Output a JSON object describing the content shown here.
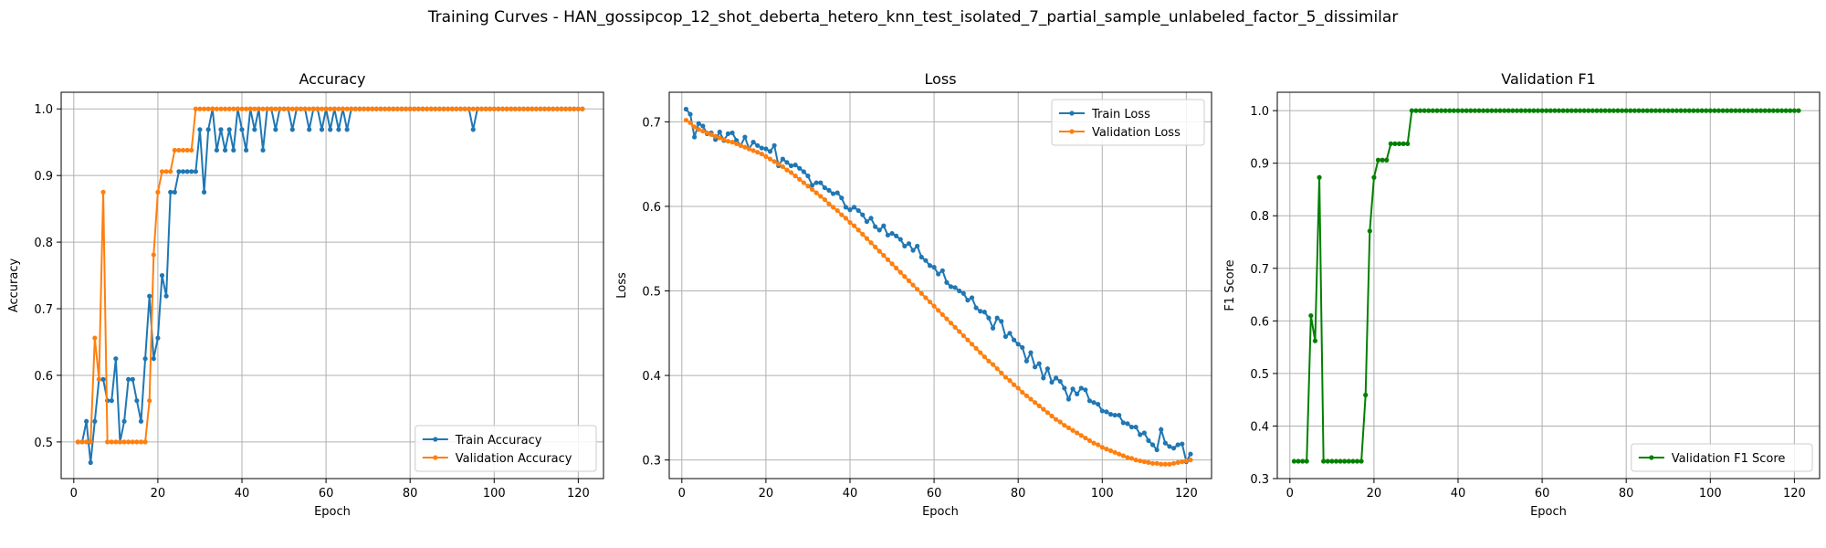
{
  "figure_title": "Training Curves - HAN_gossipcop_12_shot_deberta_hetero_knn_test_isolated_7_partial_sample_unlabeled_factor_5_dissimilar",
  "chart_data": [
    {
      "type": "line",
      "title": "Accuracy",
      "xlabel": "Epoch",
      "ylabel": "Accuracy",
      "xlim": [
        -3,
        126
      ],
      "ylim": [
        0.445,
        1.025
      ],
      "xticks": [
        0,
        20,
        40,
        60,
        80,
        100,
        120
      ],
      "yticks": [
        0.5,
        0.6,
        0.7,
        0.8,
        0.9,
        1.0
      ],
      "ytick_labels": [
        "0.5",
        "0.6",
        "0.7",
        "0.8",
        "0.9",
        "1.0"
      ],
      "grid": true,
      "legend_position": "lower-right",
      "x_start": 1,
      "x_end": 121,
      "series": [
        {
          "name": "Train Accuracy",
          "color": "#1f77b4",
          "values": [
            0.5,
            0.5,
            0.531,
            0.469,
            0.531,
            0.594,
            0.594,
            0.562,
            0.562,
            0.625,
            0.5,
            0.531,
            0.594,
            0.594,
            0.562,
            0.531,
            0.625,
            0.719,
            0.625,
            0.656,
            0.75,
            0.719,
            0.875,
            0.875,
            0.906,
            0.906,
            0.906,
            0.906,
            0.906,
            0.969,
            0.875,
            0.969,
            1.0,
            0.938,
            0.969,
            0.938,
            0.969,
            0.938,
            1.0,
            0.969,
            0.938,
            1.0,
            0.969,
            1.0,
            0.938,
            1.0,
            1.0,
            0.969,
            1.0,
            1.0,
            1.0,
            0.969,
            1.0,
            1.0,
            1.0,
            0.969,
            1.0,
            1.0,
            0.969,
            1.0,
            0.969,
            1.0,
            0.969,
            1.0,
            0.969,
            1.0,
            1.0,
            1.0,
            1.0,
            1.0,
            1.0,
            1.0,
            1.0,
            1.0,
            1.0,
            1.0,
            1.0,
            1.0,
            1.0,
            1.0,
            1.0,
            1.0,
            1.0,
            1.0,
            1.0,
            1.0,
            1.0,
            1.0,
            1.0,
            1.0,
            1.0,
            1.0,
            1.0,
            1.0,
            0.969,
            1.0,
            1.0,
            1.0,
            1.0,
            1.0,
            1.0,
            1.0,
            1.0,
            1.0,
            1.0,
            1.0,
            1.0,
            1.0,
            1.0,
            1.0,
            1.0,
            1.0,
            1.0,
            1.0,
            1.0,
            1.0,
            1.0,
            1.0,
            1.0,
            1.0,
            1.0
          ]
        },
        {
          "name": "Validation Accuracy",
          "color": "#ff7f0e",
          "values": [
            0.5,
            0.5,
            0.5,
            0.5,
            0.656,
            0.594,
            0.875,
            0.5,
            0.5,
            0.5,
            0.5,
            0.5,
            0.5,
            0.5,
            0.5,
            0.5,
            0.5,
            0.562,
            0.781,
            0.875,
            0.906,
            0.906,
            0.906,
            0.938,
            0.938,
            0.938,
            0.938,
            0.938,
            1.0,
            1.0,
            1.0,
            1.0,
            1.0,
            1.0,
            1.0,
            1.0,
            1.0,
            1.0,
            1.0,
            1.0,
            1.0,
            1.0,
            1.0,
            1.0,
            1.0,
            1.0,
            1.0,
            1.0,
            1.0,
            1.0,
            1.0,
            1.0,
            1.0,
            1.0,
            1.0,
            1.0,
            1.0,
            1.0,
            1.0,
            1.0,
            1.0,
            1.0,
            1.0,
            1.0,
            1.0,
            1.0,
            1.0,
            1.0,
            1.0,
            1.0,
            1.0,
            1.0,
            1.0,
            1.0,
            1.0,
            1.0,
            1.0,
            1.0,
            1.0,
            1.0,
            1.0,
            1.0,
            1.0,
            1.0,
            1.0,
            1.0,
            1.0,
            1.0,
            1.0,
            1.0,
            1.0,
            1.0,
            1.0,
            1.0,
            1.0,
            1.0,
            1.0,
            1.0,
            1.0,
            1.0,
            1.0,
            1.0,
            1.0,
            1.0,
            1.0,
            1.0,
            1.0,
            1.0,
            1.0,
            1.0,
            1.0,
            1.0,
            1.0,
            1.0,
            1.0,
            1.0,
            1.0,
            1.0,
            1.0,
            1.0,
            1.0
          ]
        }
      ]
    },
    {
      "type": "line",
      "title": "Loss",
      "xlabel": "Epoch",
      "ylabel": "Loss",
      "xlim": [
        -3,
        126
      ],
      "ylim": [
        0.278,
        0.735
      ],
      "xticks": [
        0,
        20,
        40,
        60,
        80,
        100,
        120
      ],
      "yticks": [
        0.3,
        0.4,
        0.5,
        0.6,
        0.7
      ],
      "ytick_labels": [
        "0.3",
        "0.4",
        "0.5",
        "0.6",
        "0.7"
      ],
      "grid": true,
      "legend_position": "upper-right",
      "x_start": 1,
      "x_end": 121,
      "series": [
        {
          "name": "Train Loss",
          "color": "#1f77b4",
          "values": [
            0.715,
            0.709,
            0.682,
            0.698,
            0.695,
            0.686,
            0.687,
            0.679,
            0.688,
            0.678,
            0.686,
            0.687,
            0.678,
            0.672,
            0.682,
            0.668,
            0.676,
            0.672,
            0.669,
            0.668,
            0.665,
            0.672,
            0.648,
            0.656,
            0.652,
            0.648,
            0.649,
            0.645,
            0.641,
            0.636,
            0.625,
            0.628,
            0.628,
            0.622,
            0.619,
            0.615,
            0.616,
            0.61,
            0.599,
            0.596,
            0.599,
            0.595,
            0.59,
            0.582,
            0.586,
            0.576,
            0.572,
            0.577,
            0.566,
            0.568,
            0.565,
            0.561,
            0.553,
            0.556,
            0.548,
            0.553,
            0.54,
            0.536,
            0.53,
            0.528,
            0.52,
            0.524,
            0.51,
            0.505,
            0.504,
            0.5,
            0.497,
            0.489,
            0.492,
            0.48,
            0.476,
            0.475,
            0.468,
            0.456,
            0.468,
            0.464,
            0.446,
            0.45,
            0.442,
            0.437,
            0.433,
            0.417,
            0.427,
            0.41,
            0.414,
            0.397,
            0.408,
            0.392,
            0.397,
            0.393,
            0.385,
            0.372,
            0.384,
            0.378,
            0.385,
            0.383,
            0.37,
            0.368,
            0.366,
            0.358,
            0.357,
            0.354,
            0.353,
            0.353,
            0.344,
            0.343,
            0.339,
            0.339,
            0.33,
            0.332,
            0.323,
            0.318,
            0.312,
            0.336,
            0.32,
            0.316,
            0.314,
            0.318,
            0.319,
            0.298,
            0.307
          ]
        },
        {
          "name": "Validation Loss",
          "color": "#ff7f0e",
          "values": [
            0.702,
            0.699,
            0.694,
            0.691,
            0.689,
            0.687,
            0.685,
            0.683,
            0.681,
            0.679,
            0.677,
            0.676,
            0.674,
            0.672,
            0.67,
            0.668,
            0.666,
            0.664,
            0.662,
            0.659,
            0.656,
            0.653,
            0.65,
            0.647,
            0.643,
            0.64,
            0.636,
            0.632,
            0.628,
            0.624,
            0.62,
            0.616,
            0.612,
            0.608,
            0.603,
            0.599,
            0.595,
            0.59,
            0.586,
            0.581,
            0.577,
            0.572,
            0.567,
            0.562,
            0.557,
            0.552,
            0.547,
            0.542,
            0.537,
            0.532,
            0.527,
            0.522,
            0.517,
            0.512,
            0.507,
            0.502,
            0.497,
            0.492,
            0.487,
            0.482,
            0.477,
            0.472,
            0.467,
            0.462,
            0.457,
            0.452,
            0.447,
            0.442,
            0.437,
            0.432,
            0.427,
            0.422,
            0.417,
            0.413,
            0.408,
            0.403,
            0.398,
            0.394,
            0.389,
            0.385,
            0.38,
            0.376,
            0.372,
            0.368,
            0.364,
            0.36,
            0.356,
            0.352,
            0.348,
            0.345,
            0.341,
            0.338,
            0.335,
            0.332,
            0.329,
            0.326,
            0.323,
            0.32,
            0.318,
            0.315,
            0.313,
            0.311,
            0.309,
            0.307,
            0.305,
            0.303,
            0.302,
            0.3,
            0.299,
            0.298,
            0.297,
            0.296,
            0.296,
            0.295,
            0.295,
            0.295,
            0.296,
            0.297,
            0.298,
            0.299,
            0.3
          ]
        }
      ]
    },
    {
      "type": "line",
      "title": "Validation F1",
      "xlabel": "Epoch",
      "ylabel": "F1 Score",
      "xlim": [
        -3,
        126
      ],
      "ylim": [
        0.3,
        1.035
      ],
      "xticks": [
        0,
        20,
        40,
        60,
        80,
        100,
        120
      ],
      "yticks": [
        0.3,
        0.4,
        0.5,
        0.6,
        0.7,
        0.8,
        0.9,
        1.0
      ],
      "ytick_labels": [
        "0.3",
        "0.4",
        "0.5",
        "0.6",
        "0.7",
        "0.8",
        "0.9",
        "1.0"
      ],
      "grid": true,
      "legend_position": "lower-right",
      "x_start": 1,
      "x_end": 121,
      "series": [
        {
          "name": "Validation F1 Score",
          "color": "#008000",
          "values": [
            0.333,
            0.333,
            0.333,
            0.333,
            0.61,
            0.562,
            0.873,
            0.333,
            0.333,
            0.333,
            0.333,
            0.333,
            0.333,
            0.333,
            0.333,
            0.333,
            0.333,
            0.459,
            0.771,
            0.873,
            0.906,
            0.906,
            0.906,
            0.937,
            0.937,
            0.937,
            0.937,
            0.937,
            1.0,
            1.0,
            1.0,
            1.0,
            1.0,
            1.0,
            1.0,
            1.0,
            1.0,
            1.0,
            1.0,
            1.0,
            1.0,
            1.0,
            1.0,
            1.0,
            1.0,
            1.0,
            1.0,
            1.0,
            1.0,
            1.0,
            1.0,
            1.0,
            1.0,
            1.0,
            1.0,
            1.0,
            1.0,
            1.0,
            1.0,
            1.0,
            1.0,
            1.0,
            1.0,
            1.0,
            1.0,
            1.0,
            1.0,
            1.0,
            1.0,
            1.0,
            1.0,
            1.0,
            1.0,
            1.0,
            1.0,
            1.0,
            1.0,
            1.0,
            1.0,
            1.0,
            1.0,
            1.0,
            1.0,
            1.0,
            1.0,
            1.0,
            1.0,
            1.0,
            1.0,
            1.0,
            1.0,
            1.0,
            1.0,
            1.0,
            1.0,
            1.0,
            1.0,
            1.0,
            1.0,
            1.0,
            1.0,
            1.0,
            1.0,
            1.0,
            1.0,
            1.0,
            1.0,
            1.0,
            1.0,
            1.0,
            1.0,
            1.0,
            1.0,
            1.0,
            1.0,
            1.0,
            1.0,
            1.0,
            1.0,
            1.0,
            1.0
          ]
        }
      ]
    }
  ]
}
